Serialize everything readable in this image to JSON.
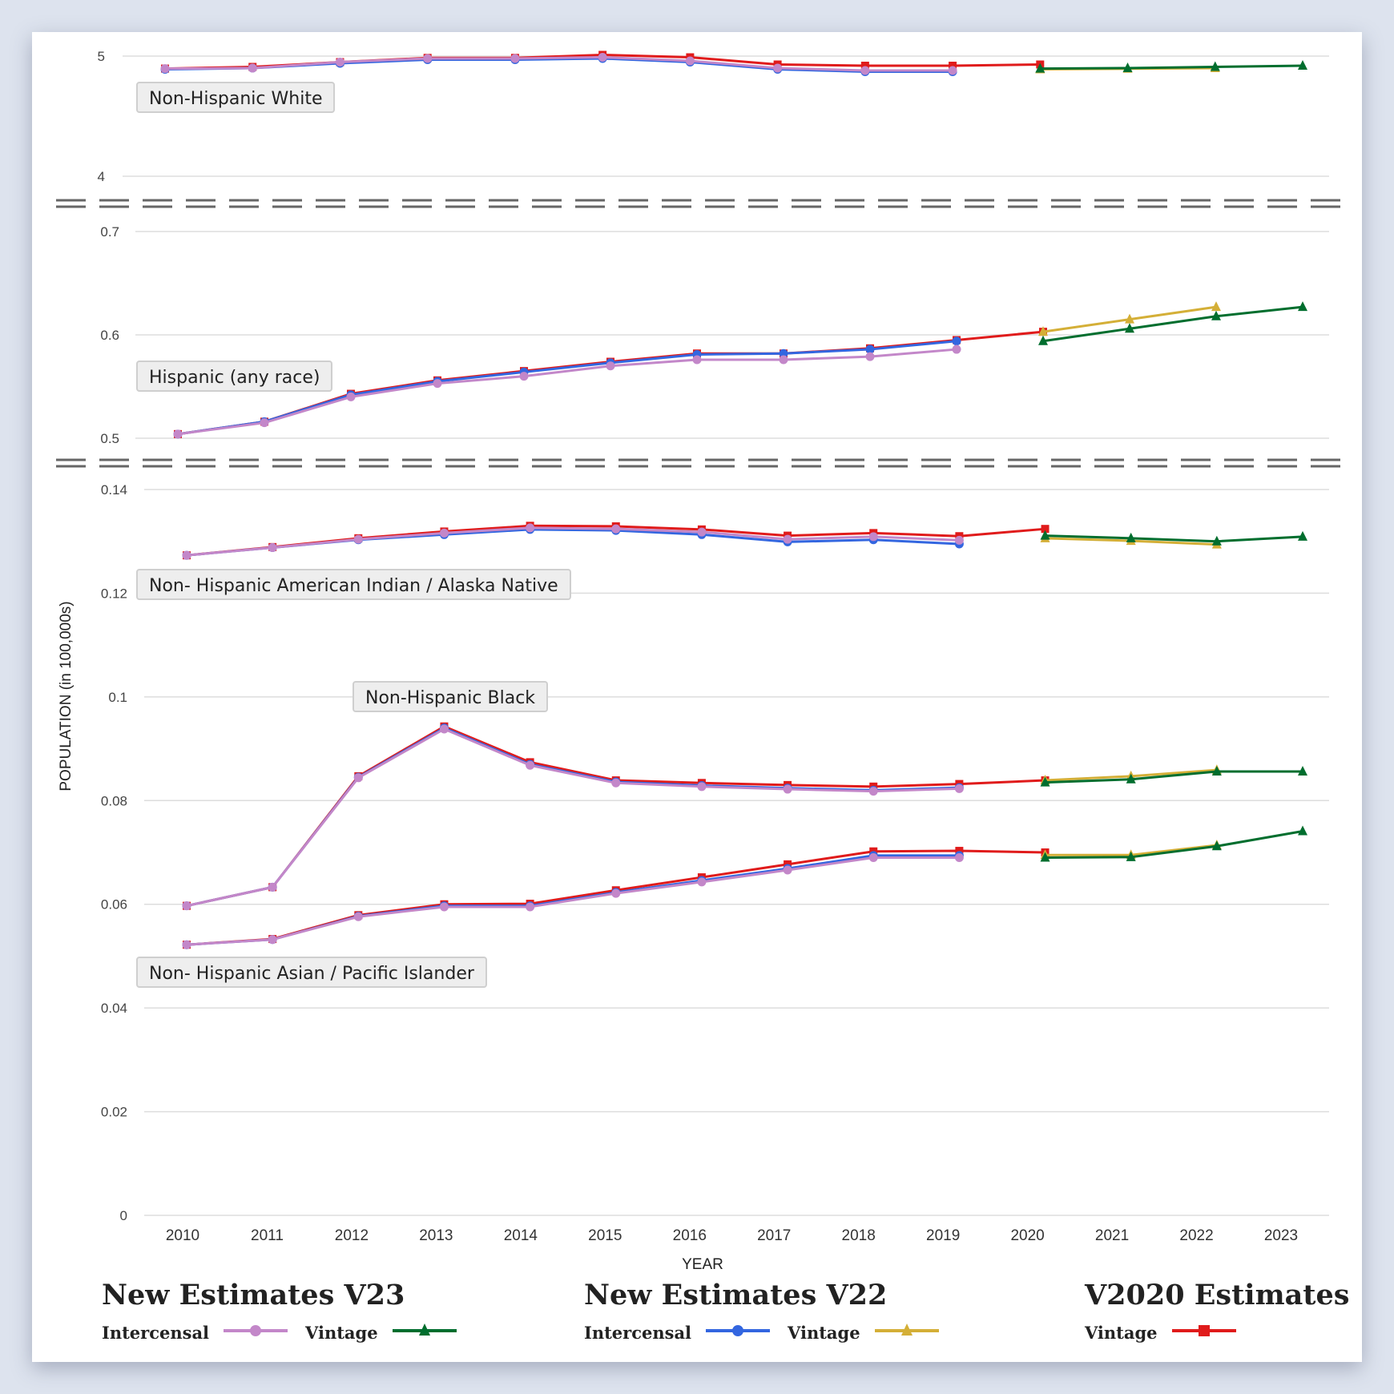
{
  "chart_data": {
    "type": "line",
    "xlabel": "YEAR",
    "ylabel": "POPULATION (in 100,000s)",
    "x": [
      2010,
      2011,
      2012,
      2013,
      2014,
      2015,
      2016,
      2017,
      2018,
      2019,
      2020,
      2021,
      2022,
      2023
    ],
    "grid": true,
    "axis_break": true,
    "series_defs": [
      {
        "key": "v23_intercensal",
        "group": "New Estimates V23",
        "name": "Intercensal",
        "color": "#c387c9",
        "marker": "circle"
      },
      {
        "key": "v23_vintage",
        "group": "New Estimates V23",
        "name": "Vintage",
        "color": "#006e2e",
        "marker": "triangle"
      },
      {
        "key": "v22_intercensal",
        "group": "New Estimates V22",
        "name": "Intercensal",
        "color": "#3366e0",
        "marker": "circle"
      },
      {
        "key": "v22_vintage",
        "group": "New Estimates V22",
        "name": "Vintage",
        "color": "#d4af37",
        "marker": "triangle"
      },
      {
        "key": "v2020_vintage",
        "group": "V2020 Estimates",
        "name": "Vintage",
        "color": "#e01b1b",
        "marker": "square"
      }
    ],
    "panels": [
      {
        "ylim": [
          4,
          5
        ],
        "yticks": [
          "4",
          "5"
        ],
        "ytick_values": [
          4,
          5
        ],
        "groups": [
          {
            "label": "Non-Hispanic White",
            "series": {
              "v2020_vintage": [
                4.896,
                4.91,
                4.95,
                4.985,
                4.985,
                5.01,
                4.99,
                4.93,
                4.92,
                4.92,
                4.93,
                null,
                null,
                null
              ],
              "v22_intercensal": [
                4.89,
                4.9,
                4.94,
                4.97,
                4.97,
                4.98,
                4.95,
                4.89,
                4.87,
                4.87,
                null,
                null,
                null,
                null
              ],
              "v23_intercensal": [
                4.896,
                4.9,
                4.95,
                4.98,
                4.98,
                4.99,
                4.96,
                4.9,
                4.88,
                4.88,
                null,
                null,
                null,
                null
              ],
              "v22_vintage": [
                null,
                null,
                null,
                null,
                null,
                null,
                null,
                null,
                null,
                null,
                4.89,
                4.895,
                4.9,
                null
              ],
              "v23_vintage": [
                null,
                null,
                null,
                null,
                null,
                null,
                null,
                null,
                null,
                null,
                4.896,
                4.9,
                4.91,
                4.92
              ]
            }
          }
        ]
      },
      {
        "ylim": [
          0.5,
          0.7
        ],
        "yticks": [
          "0.5",
          "0.6",
          "0.7"
        ],
        "ytick_values": [
          0.5,
          0.6,
          0.7
        ],
        "groups": [
          {
            "label": "Hispanic (any race)",
            "series": {
              "v2020_vintage": [
                0.504,
                0.516,
                0.543,
                0.556,
                0.565,
                0.574,
                0.582,
                0.582,
                0.587,
                0.595,
                0.603,
                null,
                null,
                null
              ],
              "v22_intercensal": [
                0.504,
                0.516,
                0.542,
                0.555,
                0.564,
                0.573,
                0.581,
                0.582,
                0.586,
                0.594,
                null,
                null,
                null,
                null
              ],
              "v23_intercensal": [
                0.504,
                0.515,
                0.54,
                0.553,
                0.56,
                0.57,
                0.576,
                0.576,
                0.579,
                0.586,
                null,
                null,
                null,
                null
              ],
              "v22_vintage": [
                null,
                null,
                null,
                null,
                null,
                null,
                null,
                null,
                null,
                null,
                0.603,
                0.615,
                0.627,
                null
              ],
              "v23_vintage": [
                null,
                null,
                null,
                null,
                null,
                null,
                null,
                null,
                null,
                null,
                0.594,
                0.606,
                0.618,
                0.627
              ]
            }
          }
        ]
      },
      {
        "ylim": [
          0,
          0.14
        ],
        "yticks": [
          "0",
          "0.02",
          "0.04",
          "0.06",
          "0.08",
          "0.1",
          "0.12",
          "0.14"
        ],
        "ytick_values": [
          0,
          0.02,
          0.04,
          0.06,
          0.08,
          0.1,
          0.12,
          0.14
        ],
        "groups": [
          {
            "label": "Non- Hispanic American Indian / Alaska Native",
            "series": {
              "v2020_vintage": [
                0.1273,
                0.1289,
                0.1306,
                0.1319,
                0.133,
                0.1329,
                0.1323,
                0.1311,
                0.1316,
                0.131,
                0.1324,
                null,
                null,
                null
              ],
              "v22_intercensal": [
                0.1273,
                0.1288,
                0.1303,
                0.1313,
                0.1323,
                0.1321,
                0.1313,
                0.1299,
                0.1303,
                0.1295,
                null,
                null,
                null,
                null
              ],
              "v23_intercensal": [
                0.1273,
                0.1288,
                0.1304,
                0.1316,
                0.1326,
                0.1324,
                0.1318,
                0.1304,
                0.1309,
                0.1302,
                null,
                null,
                null,
                null
              ],
              "v22_vintage": [
                null,
                null,
                null,
                null,
                null,
                null,
                null,
                null,
                null,
                null,
                0.1306,
                0.1301,
                0.1294,
                null
              ],
              "v23_vintage": [
                null,
                null,
                null,
                null,
                null,
                null,
                null,
                null,
                null,
                null,
                0.1311,
                0.1306,
                0.13,
                0.1309
              ]
            }
          },
          {
            "label": "Non-Hispanic Black",
            "series": {
              "v2020_vintage": [
                0.0597,
                0.0633,
                0.0847,
                0.0943,
                0.0874,
                0.0839,
                0.0834,
                0.083,
                0.0827,
                0.0832,
                0.0839,
                null,
                null,
                null
              ],
              "v22_intercensal": [
                0.0597,
                0.0633,
                0.0845,
                0.094,
                0.087,
                0.0836,
                0.0829,
                0.0824,
                0.082,
                0.0825,
                null,
                null,
                null,
                null
              ],
              "v23_intercensal": [
                0.0597,
                0.0633,
                0.0844,
                0.0938,
                0.0868,
                0.0834,
                0.0827,
                0.0822,
                0.0818,
                0.0823,
                null,
                null,
                null,
                null
              ],
              "v22_vintage": [
                null,
                null,
                null,
                null,
                null,
                null,
                null,
                null,
                null,
                null,
                0.0839,
                0.0847,
                0.0859,
                null
              ],
              "v23_vintage": [
                null,
                null,
                null,
                null,
                null,
                null,
                null,
                null,
                null,
                null,
                0.0835,
                0.0841,
                0.0856,
                0.0856
              ]
            }
          },
          {
            "label": "Non- Hispanic Asian / Pacific Islander",
            "series": {
              "v2020_vintage": [
                0.0522,
                0.0533,
                0.0579,
                0.06,
                0.0601,
                0.0627,
                0.0652,
                0.0677,
                0.0702,
                0.0703,
                0.07,
                null,
                null,
                null
              ],
              "v22_intercensal": [
                0.0522,
                0.0532,
                0.0577,
                0.0597,
                0.0597,
                0.0623,
                0.0646,
                0.0669,
                0.0694,
                0.0694,
                null,
                null,
                null,
                null
              ],
              "v23_intercensal": [
                0.0522,
                0.0532,
                0.0576,
                0.0595,
                0.0595,
                0.0621,
                0.0643,
                0.0666,
                0.069,
                0.069,
                null,
                null,
                null,
                null
              ],
              "v22_vintage": [
                null,
                null,
                null,
                null,
                null,
                null,
                null,
                null,
                null,
                null,
                0.0695,
                0.0695,
                0.0714,
                null
              ],
              "v23_vintage": [
                null,
                null,
                null,
                null,
                null,
                null,
                null,
                null,
                null,
                null,
                0.069,
                0.0691,
                0.0712,
                0.0741
              ]
            }
          }
        ]
      }
    ]
  },
  "legend": {
    "groups": [
      {
        "title": "New Estimates V23",
        "items": [
          {
            "label": "Intercensal",
            "key": "v23_intercensal"
          },
          {
            "label": "Vintage",
            "key": "v23_vintage"
          }
        ]
      },
      {
        "title": "New Estimates V22",
        "items": [
          {
            "label": "Intercensal",
            "key": "v22_intercensal"
          },
          {
            "label": "Vintage",
            "key": "v22_vintage"
          }
        ]
      },
      {
        "title": "V2020 Estimates",
        "items": [
          {
            "label": "Vintage",
            "key": "v2020_vintage"
          }
        ]
      }
    ]
  }
}
